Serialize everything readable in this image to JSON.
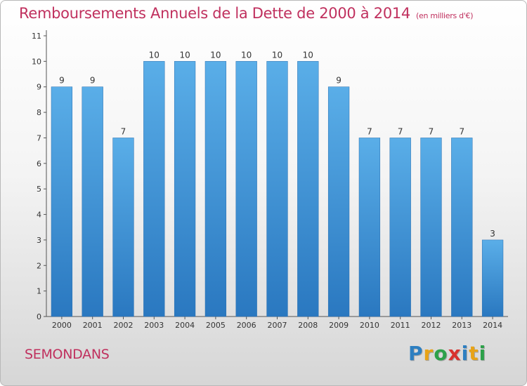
{
  "header": {
    "title": "Remboursements Annuels de la Dette de 2000 à 2014",
    "unit": "(en milliers d'€)"
  },
  "commune": "SEMONDANS",
  "logo": {
    "letters": [
      "P",
      "r",
      "o",
      "x",
      "i",
      "t",
      "i"
    ],
    "colors": [
      "#2d7fc1",
      "#e8a317",
      "#2da14a",
      "#d8322e",
      "#2d7fc1",
      "#e8a317",
      "#2da14a"
    ]
  },
  "chart_data": {
    "type": "bar",
    "categories": [
      "2000",
      "2001",
      "2002",
      "2003",
      "2004",
      "2005",
      "2006",
      "2007",
      "2008",
      "2009",
      "2010",
      "2011",
      "2012",
      "2013",
      "2014"
    ],
    "values": [
      9,
      9,
      7,
      10,
      10,
      10,
      10,
      10,
      10,
      9,
      7,
      7,
      7,
      7,
      3
    ],
    "data_labels": [
      "9",
      "9",
      "7",
      "10",
      "10",
      "10",
      "10",
      "10",
      "10",
      "9",
      "7",
      "7",
      "7",
      "7",
      "3"
    ],
    "ylim": [
      0,
      11
    ],
    "yticks": [
      "0",
      "1",
      "2",
      "3",
      "4",
      "5",
      "6",
      "7",
      "8",
      "9",
      "10",
      "11"
    ],
    "bar_color": "#3a8fd8",
    "grid": false
  }
}
